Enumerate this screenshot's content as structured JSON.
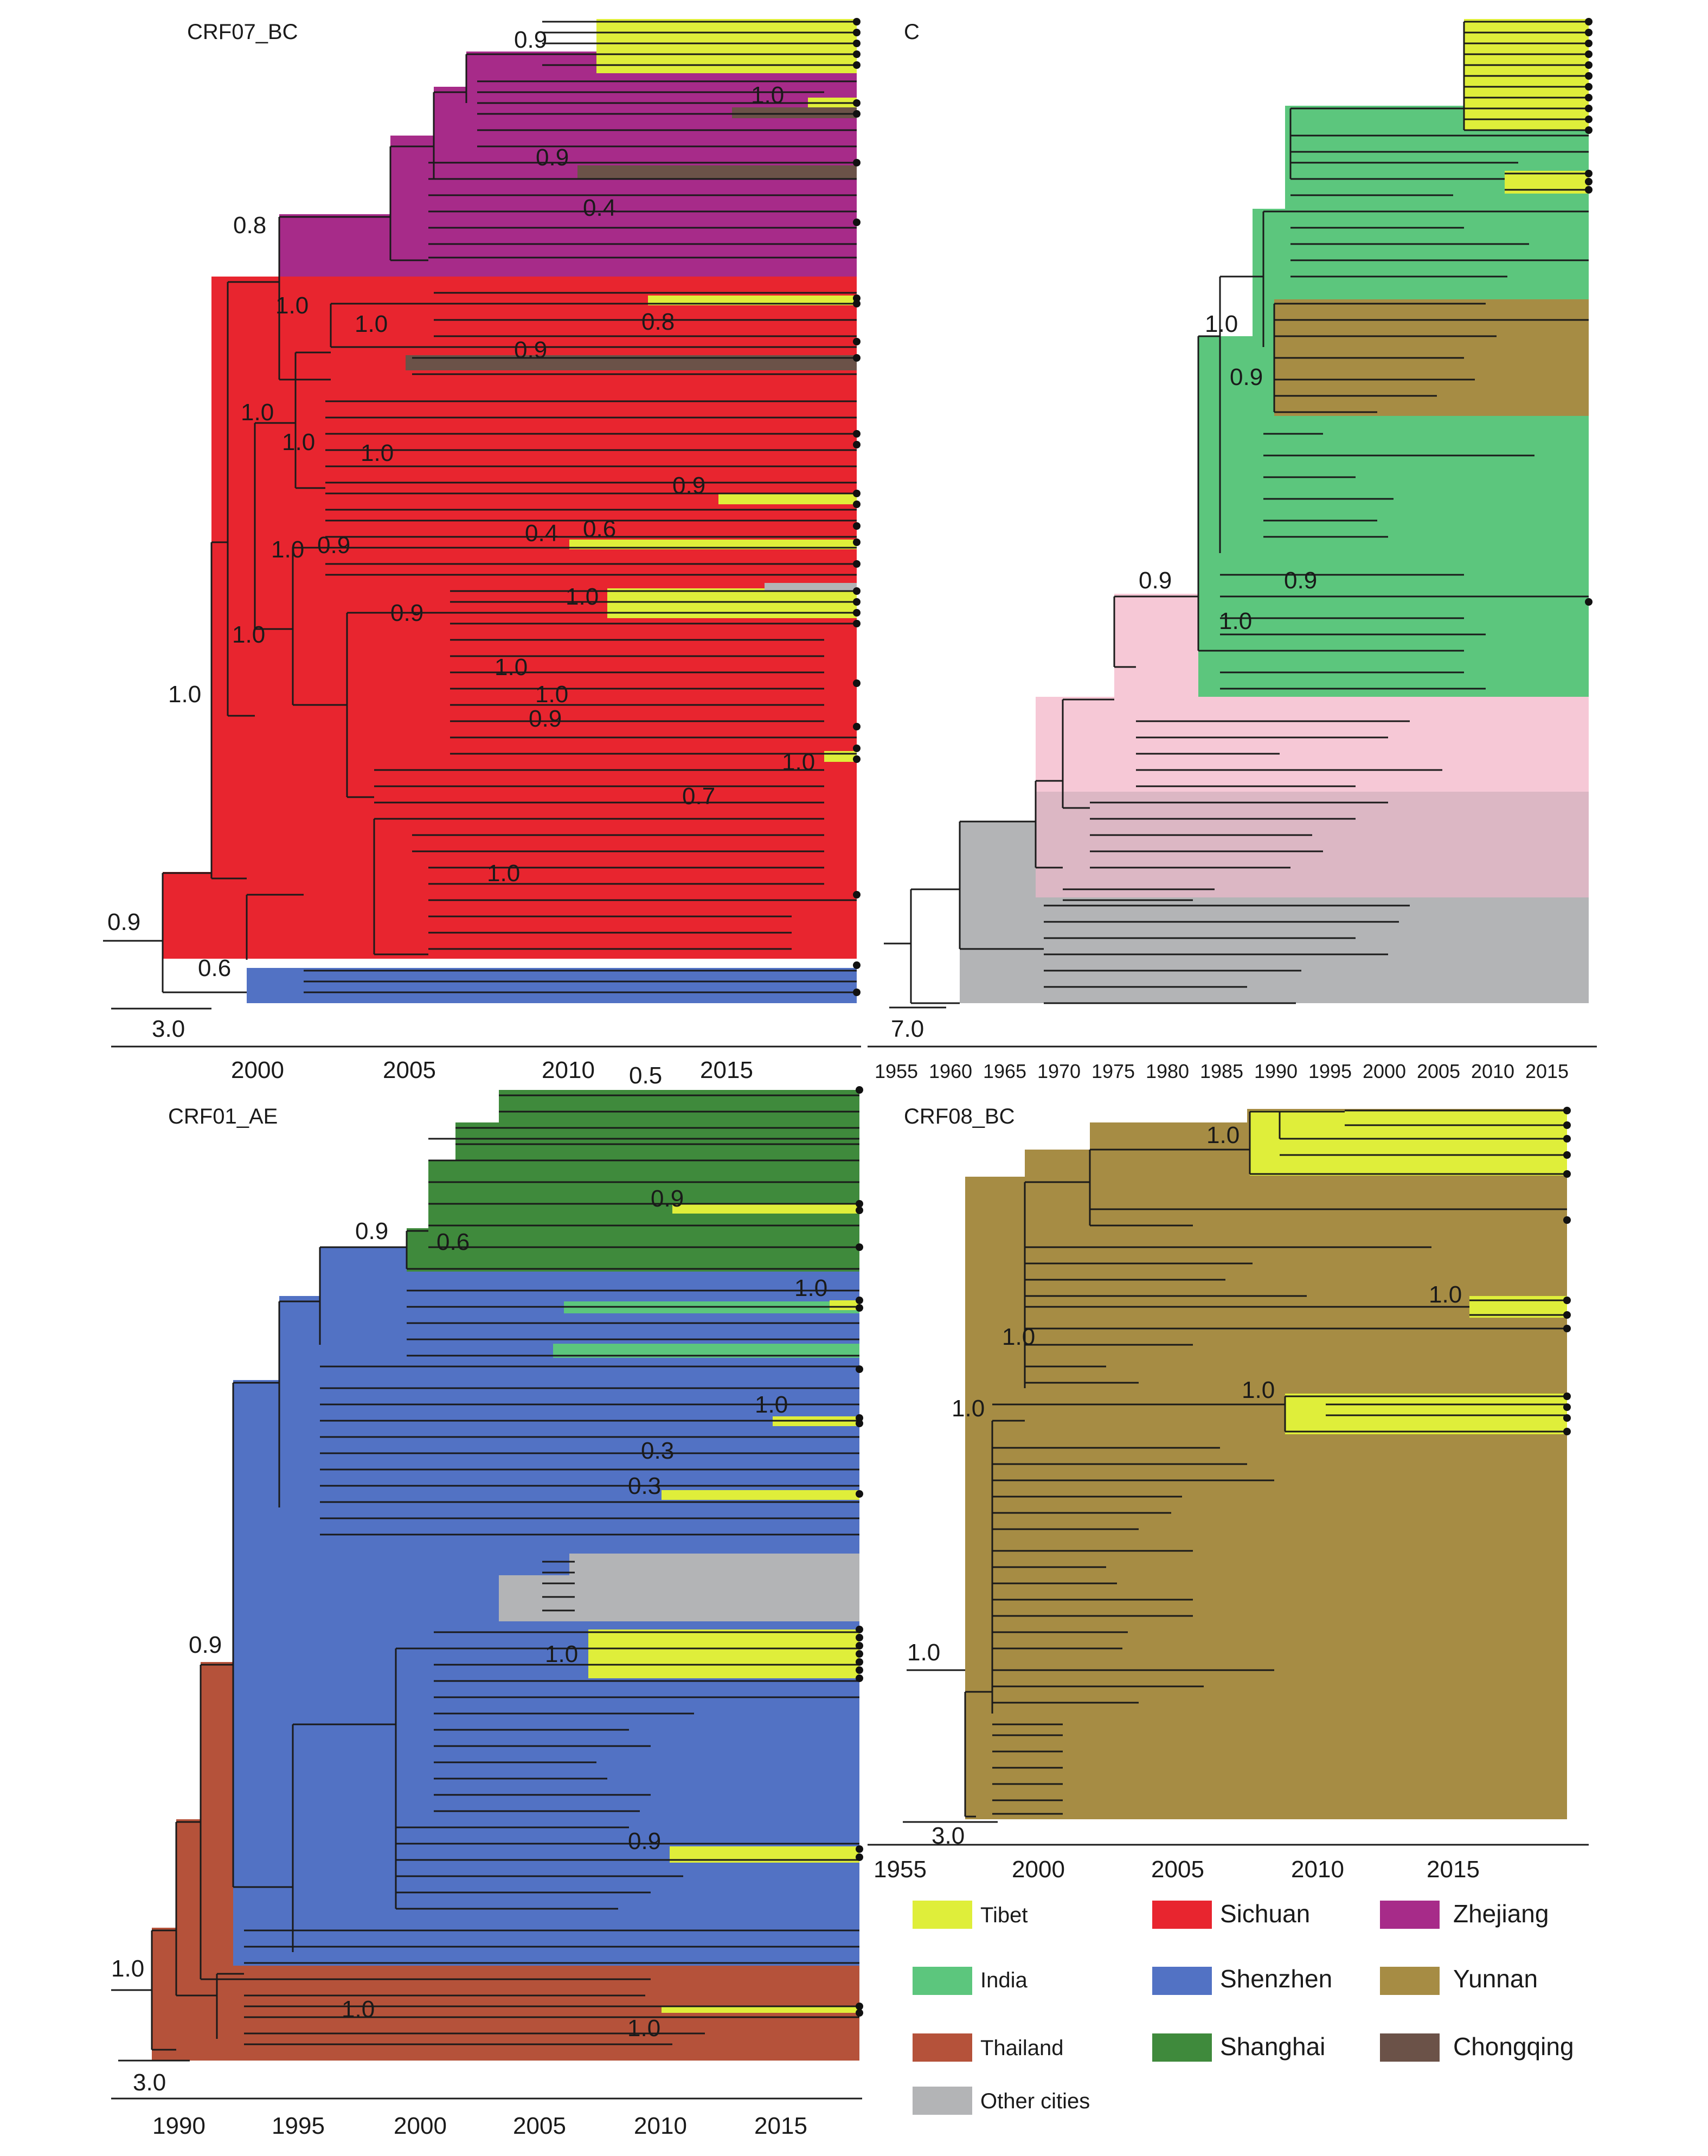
{
  "panels": {
    "crf07": {
      "title": "CRF07_BC",
      "scale_label": "3.0",
      "axis_ticks": [
        "2000",
        "2005",
        "2010",
        "2015"
      ],
      "support_labels": [
        "0.9",
        "1.0",
        "0.9",
        "0.8",
        "0.4",
        "1.0",
        "1.0",
        "0.8",
        "0.9",
        "1.0",
        "1.0",
        "1.0",
        "0.9",
        "0.6",
        "0.4",
        "1.0",
        "0.9",
        "0.9",
        "1.0",
        "1.0",
        "1.0",
        "1.0",
        "0.9",
        "1.0",
        "0.7",
        "1.0",
        "0.9",
        "0.6"
      ]
    },
    "c": {
      "title": "C",
      "scale_label": "7.0",
      "axis_ticks": [
        "1955",
        "1960",
        "1965",
        "1970",
        "1975",
        "1980",
        "1985",
        "1990",
        "1995",
        "2000",
        "2005",
        "2010",
        "2015"
      ],
      "support_labels": [
        "1.0",
        "0.9",
        "0.9",
        "0.9",
        "1.0"
      ]
    },
    "crf01": {
      "title": "CRF01_AE",
      "scale_label": "3.0",
      "axis_ticks": [
        "1990",
        "1995",
        "2000",
        "2005",
        "2010",
        "2015"
      ],
      "support_labels": [
        "0.5",
        "0.9",
        "0.9",
        "0.6",
        "1.0",
        "1.0",
        "0.3",
        "0.3",
        "1.0",
        "0.9",
        "0.9",
        "1.0",
        "1.0",
        "1.0"
      ]
    },
    "crf08": {
      "title": "CRF08_BC",
      "scale_label": "3.0",
      "axis_ticks": [
        "1955",
        "2000",
        "2005",
        "2010",
        "2015"
      ],
      "support_labels": [
        "1.0",
        "1.0",
        "1.0",
        "1.0",
        "1.0",
        "1.0"
      ]
    }
  },
  "legend": [
    {
      "label": "Tibet",
      "color": "#dfee3a"
    },
    {
      "label": "Sichuan",
      "color": "#e8252f"
    },
    {
      "label": "Zhejiang",
      "color": "#a72b89"
    },
    {
      "label": "India",
      "color": "#5cc67d"
    },
    {
      "label": "Shenzhen",
      "color": "#5272c4"
    },
    {
      "label": "Yunnan",
      "color": "#a68c44"
    },
    {
      "label": "Thailand",
      "color": "#b5523a"
    },
    {
      "label": "Shanghai",
      "color": "#3f8a3c"
    },
    {
      "label": "Chongqing",
      "color": "#6b5248"
    },
    {
      "label": "Other cities",
      "color": "#b3b4b6"
    }
  ]
}
